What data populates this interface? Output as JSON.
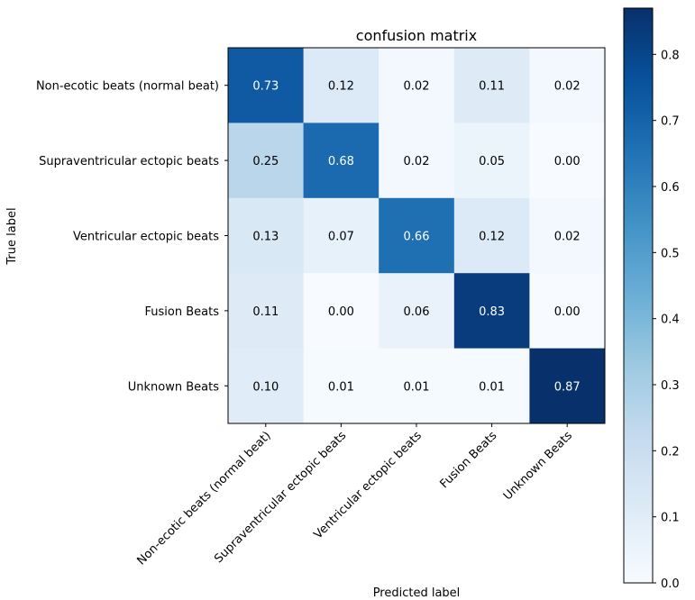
{
  "chart_data": {
    "type": "heatmap",
    "title": "confusion matrix",
    "xlabel": "Predicted label",
    "ylabel": "True label",
    "row_labels": [
      "Non-ecotic beats (normal beat)",
      "Supraventricular ectopic beats",
      "Ventricular ectopic beats",
      "Fusion Beats",
      "Unknown Beats"
    ],
    "col_labels": [
      "Non-ecotic beats (normal beat)",
      "Supraventricular ectopic beats",
      "Ventricular ectopic beats",
      "Fusion Beats",
      "Unknown Beats"
    ],
    "values": [
      [
        0.73,
        0.12,
        0.02,
        0.11,
        0.02
      ],
      [
        0.25,
        0.68,
        0.02,
        0.05,
        0.0
      ],
      [
        0.13,
        0.07,
        0.66,
        0.12,
        0.02
      ],
      [
        0.11,
        0.0,
        0.06,
        0.83,
        0.0
      ],
      [
        0.1,
        0.01,
        0.01,
        0.01,
        0.87
      ]
    ],
    "colormap": "Blues",
    "vmin": 0.0,
    "vmax": 0.87,
    "colorbar_ticks": [
      0.0,
      0.1,
      0.2,
      0.3,
      0.4,
      0.5,
      0.6,
      0.7,
      0.8
    ],
    "colorbar_tick_labels": [
      "0.0",
      "0.1",
      "0.2",
      "0.3",
      "0.4",
      "0.5",
      "0.6",
      "0.7",
      "0.8"
    ],
    "text_color_light": "#ffffff",
    "text_color_dark": "#000000"
  }
}
